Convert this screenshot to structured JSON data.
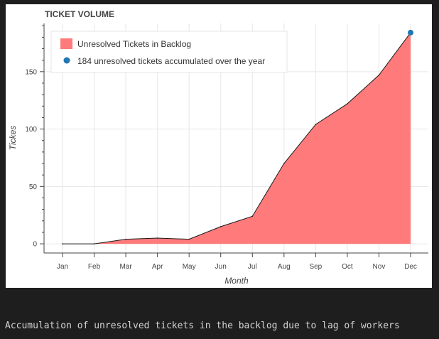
{
  "caption": "Accumulation of unresolved tickets in the backlog due to lag of workers",
  "chart_data": {
    "type": "area",
    "title": "TICKET VOLUME",
    "xlabel": "Month",
    "ylabel": "Tickes",
    "categories": [
      "Jan",
      "Feb",
      "Mar",
      "Apr",
      "May",
      "Jun",
      "Jul",
      "Aug",
      "Sep",
      "Oct",
      "Nov",
      "Dec"
    ],
    "ylim": [
      -8,
      192
    ],
    "yticks": [
      0,
      50,
      100,
      150
    ],
    "grid": true,
    "legend_position": "top-left",
    "series": [
      {
        "name": "Unresolved Tickets in Backlog",
        "values": [
          0,
          0,
          4,
          5,
          4,
          15,
          24,
          70,
          104,
          122,
          147,
          184
        ],
        "fill_color": "#ff7b7b",
        "line_color": "#1a1a1a"
      }
    ],
    "annotation": {
      "label": "184 unresolved tickets accumulated over the year",
      "category": "Dec",
      "value": 184,
      "color": "#1f77b4"
    }
  }
}
